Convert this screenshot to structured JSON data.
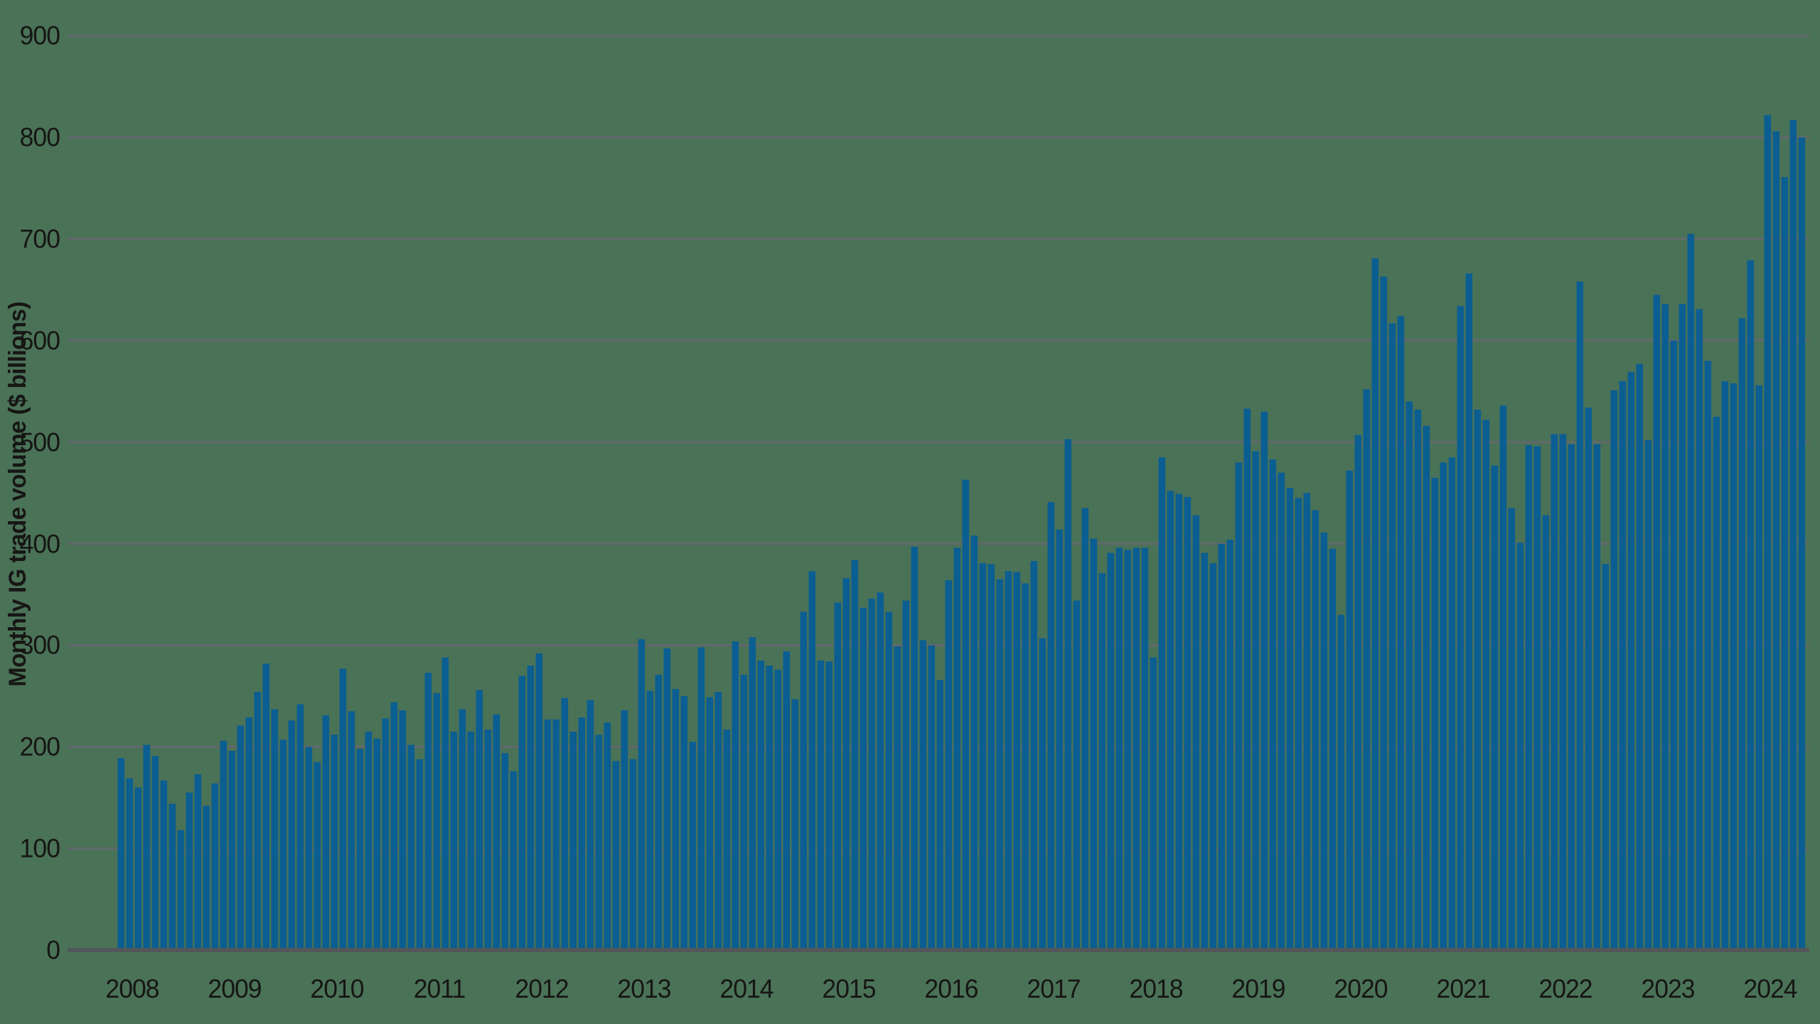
{
  "colors": {
    "background": "#4a7257",
    "bar": "#0b5e92",
    "gridline": "#63686d",
    "axis_line": "#53575b",
    "text": "#161614"
  },
  "chart_data": {
    "type": "bar",
    "title": "",
    "xlabel": "",
    "ylabel": "Monthly IG trade volume ($ billions)",
    "ylim": [
      0,
      900
    ],
    "yticks": [
      0,
      100,
      200,
      300,
      400,
      500,
      600,
      700,
      800,
      900
    ],
    "grid": "horizontal",
    "legend": "none",
    "start_month": "2008-01",
    "end_month": "2024-06",
    "year_labels": [
      "2008",
      "2009",
      "2010",
      "2011",
      "2012",
      "2013",
      "2014",
      "2015",
      "2016",
      "2017",
      "2018",
      "2019",
      "2020",
      "2021",
      "2022",
      "2023",
      "2024"
    ],
    "values": [
      189,
      169,
      160,
      202,
      191,
      167,
      144,
      118,
      155,
      173,
      142,
      164,
      206,
      196,
      221,
      229,
      254,
      282,
      237,
      207,
      226,
      242,
      200,
      185,
      231,
      212,
      277,
      235,
      198,
      215,
      208,
      228,
      244,
      236,
      202,
      188,
      273,
      253,
      288,
      215,
      237,
      215,
      256,
      217,
      232,
      194,
      176,
      270,
      280,
      292,
      227,
      227,
      248,
      215,
      229,
      246,
      212,
      224,
      186,
      236,
      188,
      306,
      255,
      271,
      297,
      257,
      250,
      205,
      298,
      249,
      254,
      217,
      304,
      271,
      308,
      285,
      280,
      276,
      294,
      247,
      333,
      373,
      285,
      284,
      342,
      366,
      384,
      337,
      346,
      352,
      333,
      299,
      344,
      397,
      305,
      300,
      266,
      364,
      396,
      463,
      408,
      381,
      380,
      365,
      373,
      372,
      361,
      383,
      307,
      441,
      414,
      503,
      344,
      435,
      405,
      371,
      391,
      396,
      394,
      396,
      396,
      288,
      485,
      452,
      449,
      446,
      428,
      391,
      381,
      400,
      404,
      480,
      533,
      491,
      530,
      483,
      470,
      455,
      445,
      450,
      433,
      411,
      395,
      330,
      472,
      507,
      552,
      681,
      663,
      617,
      624,
      540,
      532,
      516,
      465,
      480,
      485,
      634,
      666,
      532,
      522,
      477,
      536,
      435,
      401,
      497,
      496,
      428,
      508,
      508,
      498,
      658,
      534,
      498,
      380,
      551,
      560,
      569,
      577,
      502,
      645,
      636,
      600,
      636,
      705,
      631,
      580,
      525,
      560,
      558,
      622,
      679,
      556,
      822,
      806,
      761,
      817,
      800
    ]
  }
}
